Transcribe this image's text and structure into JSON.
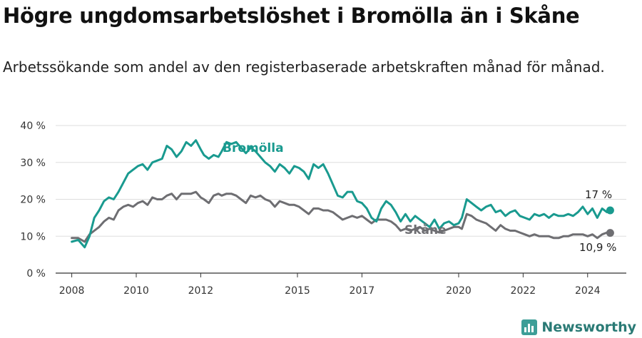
{
  "title": "Högre ungdomsarbetslöshet i Bromölla än i Skåne",
  "subtitle": "Arbetssökande som andel av den registerbaserade arbetskraften månad för månad.",
  "brand": "Newsworthy",
  "colors": {
    "bromolla": "#199a8f",
    "skane": "#6e6e72",
    "grid": "#dddddd",
    "axis": "#333333"
  },
  "chart_data": {
    "type": "line",
    "title": "Högre ungdomsarbetslöshet i Bromölla än i Skåne",
    "xlabel": "",
    "ylabel": "",
    "xlim": [
      2007.5,
      2025.2
    ],
    "ylim": [
      0,
      40
    ],
    "yticks": [
      0,
      10,
      20,
      30,
      40
    ],
    "ytick_labels": [
      "0 %",
      "10 %",
      "20 %",
      "30 %",
      "40 %"
    ],
    "xticks": [
      2008,
      2010,
      2012,
      2015,
      2017,
      2020,
      2022,
      2024
    ],
    "xtick_labels": [
      "2008",
      "2010",
      "2012",
      "2015",
      "2017",
      "2020",
      "2022",
      "2024"
    ],
    "series": [
      {
        "name": "Bromölla",
        "end_label": "17 %",
        "x": [
          2008.0,
          2008.2,
          2008.4,
          2008.55,
          2008.7,
          2008.85,
          2009.0,
          2009.15,
          2009.3,
          2009.45,
          2009.6,
          2009.75,
          2009.9,
          2010.05,
          2010.2,
          2010.35,
          2010.5,
          2010.65,
          2010.8,
          2010.95,
          2011.1,
          2011.25,
          2011.4,
          2011.55,
          2011.7,
          2011.85,
          2012.0,
          2012.1,
          2012.25,
          2012.4,
          2012.55,
          2012.65,
          2012.8,
          2012.95,
          2013.1,
          2013.25,
          2013.4,
          2013.55,
          2013.7,
          2013.85,
          2014.0,
          2014.15,
          2014.3,
          2014.45,
          2014.6,
          2014.75,
          2014.9,
          2015.05,
          2015.2,
          2015.35,
          2015.5,
          2015.65,
          2015.8,
          2015.95,
          2016.1,
          2016.25,
          2016.4,
          2016.55,
          2016.7,
          2016.85,
          2017.0,
          2017.15,
          2017.3,
          2017.45,
          2017.6,
          2017.75,
          2017.9,
          2018.05,
          2018.2,
          2018.35,
          2018.5,
          2018.65,
          2018.8,
          2018.95,
          2019.1,
          2019.25,
          2019.4,
          2019.55,
          2019.7,
          2019.85,
          2020.0,
          2020.1,
          2020.25,
          2020.4,
          2020.55,
          2020.7,
          2020.85,
          2021.0,
          2021.15,
          2021.3,
          2021.45,
          2021.6,
          2021.75,
          2021.9,
          2022.05,
          2022.2,
          2022.35,
          2022.5,
          2022.65,
          2022.8,
          2022.95,
          2023.1,
          2023.25,
          2023.4,
          2023.55,
          2023.7,
          2023.85,
          2024.0,
          2024.15,
          2024.3,
          2024.45,
          2024.6,
          2024.7
        ],
        "y": [
          8.5,
          9.0,
          7.0,
          10.0,
          15.0,
          17.0,
          19.5,
          20.5,
          20.0,
          22.0,
          24.5,
          27.0,
          28.0,
          29.0,
          29.5,
          28.0,
          30.0,
          30.5,
          31.0,
          34.5,
          33.5,
          31.5,
          33.0,
          35.5,
          34.5,
          36.0,
          33.5,
          32.0,
          31.0,
          32.0,
          31.5,
          33.0,
          35.5,
          35.0,
          35.5,
          34.0,
          32.5,
          34.0,
          33.0,
          31.5,
          30.0,
          29.0,
          27.5,
          29.5,
          28.5,
          27.0,
          29.0,
          28.5,
          27.5,
          25.5,
          29.5,
          28.5,
          29.5,
          27.0,
          24.0,
          21.0,
          20.5,
          22.0,
          22.0,
          19.5,
          19.0,
          17.5,
          15.0,
          14.0,
          17.5,
          19.5,
          18.5,
          16.5,
          14.0,
          16.0,
          14.0,
          15.5,
          14.5,
          13.5,
          12.5,
          14.5,
          12.0,
          13.5,
          14.0,
          13.0,
          13.5,
          15.0,
          20.0,
          19.0,
          18.0,
          17.0,
          18.0,
          18.5,
          16.5,
          17.0,
          15.5,
          16.5,
          17.0,
          15.5,
          15.0,
          14.5,
          16.0,
          15.5,
          16.0,
          15.0,
          16.0,
          15.5,
          15.5,
          16.0,
          15.5,
          16.5,
          18.0,
          16.0,
          17.5,
          15.0,
          17.5,
          16.5,
          17.0
        ]
      },
      {
        "name": "Skåne",
        "end_label": "10,9 %",
        "x": [
          2008.0,
          2008.2,
          2008.4,
          2008.55,
          2008.7,
          2008.85,
          2009.0,
          2009.15,
          2009.3,
          2009.45,
          2009.6,
          2009.75,
          2009.9,
          2010.05,
          2010.2,
          2010.35,
          2010.5,
          2010.65,
          2010.8,
          2010.95,
          2011.1,
          2011.25,
          2011.4,
          2011.55,
          2011.7,
          2011.85,
          2012.0,
          2012.1,
          2012.25,
          2012.4,
          2012.55,
          2012.65,
          2012.8,
          2012.95,
          2013.1,
          2013.25,
          2013.4,
          2013.55,
          2013.7,
          2013.85,
          2014.0,
          2014.15,
          2014.3,
          2014.45,
          2014.6,
          2014.75,
          2014.9,
          2015.05,
          2015.2,
          2015.35,
          2015.5,
          2015.65,
          2015.8,
          2015.95,
          2016.1,
          2016.25,
          2016.4,
          2016.55,
          2016.7,
          2016.85,
          2017.0,
          2017.15,
          2017.3,
          2017.45,
          2017.6,
          2017.75,
          2017.9,
          2018.05,
          2018.2,
          2018.35,
          2018.5,
          2018.65,
          2018.8,
          2018.95,
          2019.1,
          2019.25,
          2019.4,
          2019.55,
          2019.7,
          2019.85,
          2020.0,
          2020.1,
          2020.25,
          2020.4,
          2020.55,
          2020.7,
          2020.85,
          2021.0,
          2021.15,
          2021.3,
          2021.45,
          2021.6,
          2021.75,
          2021.9,
          2022.05,
          2022.2,
          2022.35,
          2022.5,
          2022.65,
          2022.8,
          2022.95,
          2023.1,
          2023.25,
          2023.4,
          2023.55,
          2023.7,
          2023.85,
          2024.0,
          2024.15,
          2024.3,
          2024.45,
          2024.6,
          2024.7
        ],
        "y": [
          9.5,
          9.5,
          8.5,
          10.5,
          11.5,
          12.5,
          14.0,
          15.0,
          14.5,
          17.0,
          18.0,
          18.5,
          18.0,
          19.0,
          19.5,
          18.5,
          20.5,
          20.0,
          20.0,
          21.0,
          21.5,
          20.0,
          21.5,
          21.5,
          21.5,
          22.0,
          20.5,
          20.0,
          19.0,
          21.0,
          21.5,
          21.0,
          21.5,
          21.5,
          21.0,
          20.0,
          19.0,
          21.0,
          20.5,
          21.0,
          20.0,
          19.5,
          18.0,
          19.5,
          19.0,
          18.5,
          18.5,
          18.0,
          17.0,
          16.0,
          17.5,
          17.5,
          17.0,
          17.0,
          16.5,
          15.5,
          14.5,
          15.0,
          15.5,
          15.0,
          15.5,
          14.5,
          13.5,
          14.5,
          14.5,
          14.5,
          14.0,
          13.0,
          11.5,
          12.0,
          11.5,
          12.0,
          12.5,
          11.5,
          12.0,
          11.5,
          11.0,
          11.5,
          12.0,
          12.5,
          12.5,
          12.0,
          16.0,
          15.5,
          14.5,
          14.0,
          13.5,
          12.5,
          11.5,
          13.0,
          12.0,
          11.5,
          11.5,
          11.0,
          10.5,
          10.0,
          10.5,
          10.0,
          10.0,
          10.0,
          9.5,
          9.5,
          10.0,
          10.0,
          10.5,
          10.5,
          10.5,
          10.0,
          10.5,
          9.5,
          10.5,
          11.0,
          10.9
        ]
      }
    ],
    "annotations": [
      {
        "text": "Bromölla",
        "series": "Bromölla"
      },
      {
        "text": "Skåne",
        "series": "Skåne"
      }
    ]
  }
}
